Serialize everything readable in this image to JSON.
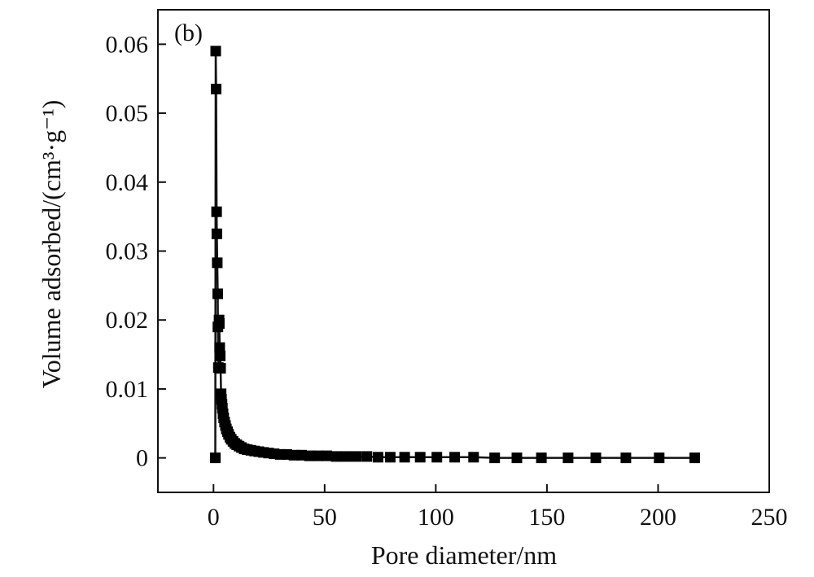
{
  "chart_data": {
    "type": "line",
    "panel_label": "(b)",
    "xlabel": "Pore diameter/nm",
    "ylabel": "Volume adsorbed/(cm³·g⁻¹)",
    "xlim": [
      -25,
      250
    ],
    "ylim": [
      -0.005,
      0.065
    ],
    "x_ticks": [
      0,
      50,
      100,
      150,
      200,
      250
    ],
    "x_tick_labels": [
      "0",
      "50",
      "100",
      "150",
      "200",
      "250"
    ],
    "y_ticks": [
      0,
      0.01,
      0.02,
      0.03,
      0.04,
      0.05,
      0.06
    ],
    "y_tick_labels": [
      "0",
      "0.01",
      "0.02",
      "0.03",
      "0.04",
      "0.05",
      "0.06"
    ],
    "grid": false,
    "legend": "none",
    "marker": "square",
    "color": "#000000",
    "series": [
      {
        "x": [
          0.8,
          1.0,
          1.2,
          1.4,
          1.5,
          1.7,
          1.9,
          2.0,
          2.2,
          2.5,
          2.6,
          2.8,
          3.0,
          3.2,
          3.4,
          3.6,
          3.8,
          4.0,
          4.3,
          4.6,
          5.0,
          5.4,
          5.8,
          6.3,
          6.8,
          7.4,
          8.0,
          8.8,
          9.6,
          10.5,
          11.5,
          12.6,
          13.8,
          15.2,
          16.8,
          18.5,
          20.4,
          22.5,
          24.8,
          27.3,
          30.0,
          33.0,
          36.2,
          39.6,
          43.2,
          47.0,
          51.0,
          55.2,
          59.6,
          64.2,
          69.0,
          74.0,
          79.5,
          86.0,
          93.0,
          100.5,
          108.5,
          117.0,
          126.5,
          136.5,
          147.5,
          159.5,
          172.0,
          185.5,
          200.5,
          216.5
        ],
        "y": [
          0,
          0.059,
          0.0535,
          0.0357,
          0.0325,
          0.0283,
          0.0238,
          0.019,
          0.0131,
          0.02,
          0.0195,
          0.016,
          0.0148,
          0.013,
          0.0093,
          0.0085,
          0.0078,
          0.0072,
          0.0064,
          0.0058,
          0.0052,
          0.0047,
          0.0042,
          0.0038,
          0.0034,
          0.003,
          0.0027,
          0.0024,
          0.0021,
          0.0019,
          0.0017,
          0.0015,
          0.0013,
          0.0012,
          0.0011,
          0.001,
          0.0009,
          0.0008,
          0.0007,
          0.0006,
          0.0005,
          0.0005,
          0.0004,
          0.0004,
          0.0003,
          0.0003,
          0.0003,
          0.0002,
          0.0002,
          0.0002,
          0.0002,
          0.0001,
          0.0001,
          0.0001,
          0.0001,
          0.0001,
          0.0001,
          0.0001,
          0,
          0,
          0,
          0,
          0,
          0,
          0,
          0
        ]
      }
    ]
  }
}
